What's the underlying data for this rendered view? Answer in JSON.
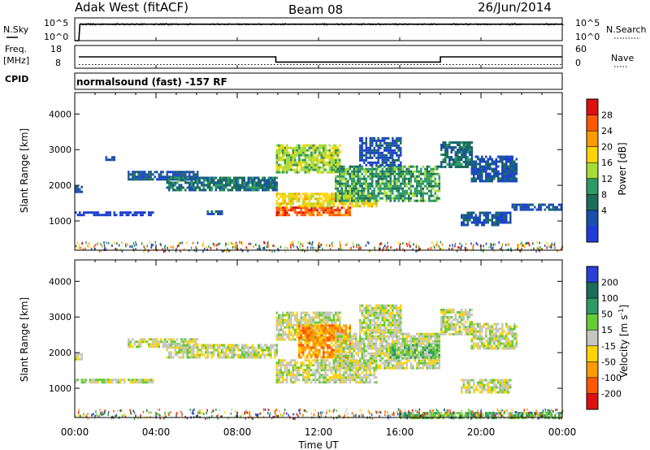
{
  "header": {
    "station": "Adak West (fitACF)",
    "beam": "Beam 08",
    "date": "26/Jun/2014"
  },
  "chart_data": [
    {
      "id": "noise",
      "type": "line",
      "left_label": "N.Sky",
      "left_ticks": [
        "10^5",
        "10^0"
      ],
      "right_label": "N.Search",
      "right_ticks": [
        "10^5",
        "10^0"
      ],
      "series": [
        {
          "x": [
            0.0,
            0.2,
            0.25,
            24.0
          ],
          "y": [
            0.0,
            0.0,
            0.72,
            0.72
          ]
        }
      ]
    },
    {
      "id": "frequency",
      "type": "line",
      "left_label_top": "Freq.",
      "left_label_bottom": "[MHz]",
      "left_ticks": [
        "18",
        "8"
      ],
      "right_label": "Nave",
      "right_ticks": [
        "60",
        "0"
      ],
      "series": [
        {
          "x": [
            0.2,
            9.9,
            9.9,
            18.0,
            18.0,
            24.0
          ],
          "y": [
            13,
            13,
            10.7,
            10.7,
            13,
            13
          ]
        }
      ],
      "nave_level": 9.6
    },
    {
      "id": "cpid",
      "type": "table",
      "label": "CPID",
      "text": "normalsound (fast) -157 RF"
    },
    {
      "id": "power",
      "type": "heatmap",
      "ylabel": "Slant Range [km]",
      "yticks": [
        1000,
        2000,
        3000,
        4000
      ],
      "ylim": [
        180,
        4600
      ],
      "xlim": [
        0,
        24
      ],
      "colorbar_label": "Power [dB]",
      "colorbar_ticks": [
        "28",
        "24",
        "20",
        "16",
        "12",
        "8",
        "4"
      ],
      "colorbar_colors": [
        "#dd1010",
        "#ff5800",
        "#ff9a00",
        "#ffd400",
        "#a8dc38",
        "#2e9a66",
        "#1b6e5a",
        "#1a4fae",
        "#1f3cd8"
      ],
      "echo_bands": [
        {
          "x0": 0.0,
          "x1": 0.35,
          "y0": 1850,
          "y1": 2050,
          "level": 7
        },
        {
          "x0": 0.0,
          "x1": 3.9,
          "y0": 1200,
          "y1": 1290,
          "level": 8
        },
        {
          "x0": 1.5,
          "x1": 2.0,
          "y0": 2750,
          "y1": 2880,
          "level": 7
        },
        {
          "x0": 2.6,
          "x1": 6.0,
          "y0": 2200,
          "y1": 2450,
          "level": 7
        },
        {
          "x0": 4.5,
          "x1": 9.9,
          "y0": 1900,
          "y1": 2250,
          "level": 6
        },
        {
          "x0": 6.5,
          "x1": 7.2,
          "y0": 1230,
          "y1": 1330,
          "level": 7
        },
        {
          "x0": 9.9,
          "x1": 13.5,
          "y0": 1200,
          "y1": 1450,
          "level": 1
        },
        {
          "x0": 9.9,
          "x1": 14.8,
          "y0": 1450,
          "y1": 1850,
          "level": 3
        },
        {
          "x0": 9.9,
          "x1": 13.0,
          "y0": 2400,
          "y1": 3200,
          "level": 4
        },
        {
          "x0": 12.8,
          "x1": 18.0,
          "y0": 1600,
          "y1": 2600,
          "level": 5
        },
        {
          "x0": 14.0,
          "x1": 16.0,
          "y0": 2600,
          "y1": 3400,
          "level": 7
        },
        {
          "x0": 18.0,
          "x1": 19.6,
          "y0": 2550,
          "y1": 3300,
          "level": 6
        },
        {
          "x0": 19.5,
          "x1": 21.8,
          "y0": 2150,
          "y1": 2850,
          "level": 7
        },
        {
          "x0": 19.0,
          "x1": 21.5,
          "y0": 920,
          "y1": 1300,
          "level": 7
        },
        {
          "x0": 21.5,
          "x1": 24.0,
          "y0": 1350,
          "y1": 1550,
          "level": 7
        }
      ]
    },
    {
      "id": "velocity",
      "type": "heatmap",
      "ylabel": "Slant Range [km]",
      "yticks": [
        1000,
        2000,
        3000,
        4000
      ],
      "ylim": [
        180,
        4600
      ],
      "xlim": [
        0,
        24
      ],
      "xticks": [
        "00:00",
        "04:00",
        "08:00",
        "12:00",
        "16:00",
        "20:00",
        "00:00"
      ],
      "xlabel": "Time UT",
      "colorbar_label": "Velocity [m s",
      "colorbar_sup": "-1",
      "colorbar_label_end": "]",
      "colorbar_ticks": [
        "200",
        "100",
        "50",
        "15",
        "-15",
        "-50",
        "-100",
        "-200"
      ],
      "colorbar_colors": [
        "#2a3fd6",
        "#1b6e5a",
        "#2e9a66",
        "#66cc33",
        "#c6c6c0",
        "#ffd400",
        "#ff9a00",
        "#ff5800",
        "#dd1010"
      ],
      "echo_bands": [
        {
          "x0": 0.0,
          "x1": 0.35,
          "y0": 1850,
          "y1": 2050,
          "level": 4
        },
        {
          "x0": 0.0,
          "x1": 3.9,
          "y0": 1200,
          "y1": 1290,
          "level": 4
        },
        {
          "x0": 2.6,
          "x1": 6.0,
          "y0": 2200,
          "y1": 2450,
          "level": 4
        },
        {
          "x0": 4.5,
          "x1": 9.9,
          "y0": 1900,
          "y1": 2250,
          "level": 4
        },
        {
          "x0": 9.9,
          "x1": 14.8,
          "y0": 1200,
          "y1": 1850,
          "level": 4
        },
        {
          "x0": 9.9,
          "x1": 13.0,
          "y0": 2400,
          "y1": 3200,
          "level": 4
        },
        {
          "x0": 11.0,
          "x1": 13.5,
          "y0": 1900,
          "y1": 2800,
          "level": 6
        },
        {
          "x0": 12.8,
          "x1": 18.0,
          "y0": 1600,
          "y1": 2600,
          "level": 4
        },
        {
          "x0": 15.5,
          "x1": 18.0,
          "y0": 1900,
          "y1": 2300,
          "level": 3
        },
        {
          "x0": 14.0,
          "x1": 16.0,
          "y0": 2600,
          "y1": 3400,
          "level": 4
        },
        {
          "x0": 18.0,
          "x1": 19.6,
          "y0": 2550,
          "y1": 3300,
          "level": 4
        },
        {
          "x0": 19.5,
          "x1": 21.8,
          "y0": 2150,
          "y1": 2850,
          "level": 4
        },
        {
          "x0": 19.0,
          "x1": 21.5,
          "y0": 920,
          "y1": 1300,
          "level": 4
        },
        {
          "x0": 16.0,
          "x1": 24.0,
          "y0": 200,
          "y1": 400,
          "level": 3
        }
      ]
    }
  ]
}
